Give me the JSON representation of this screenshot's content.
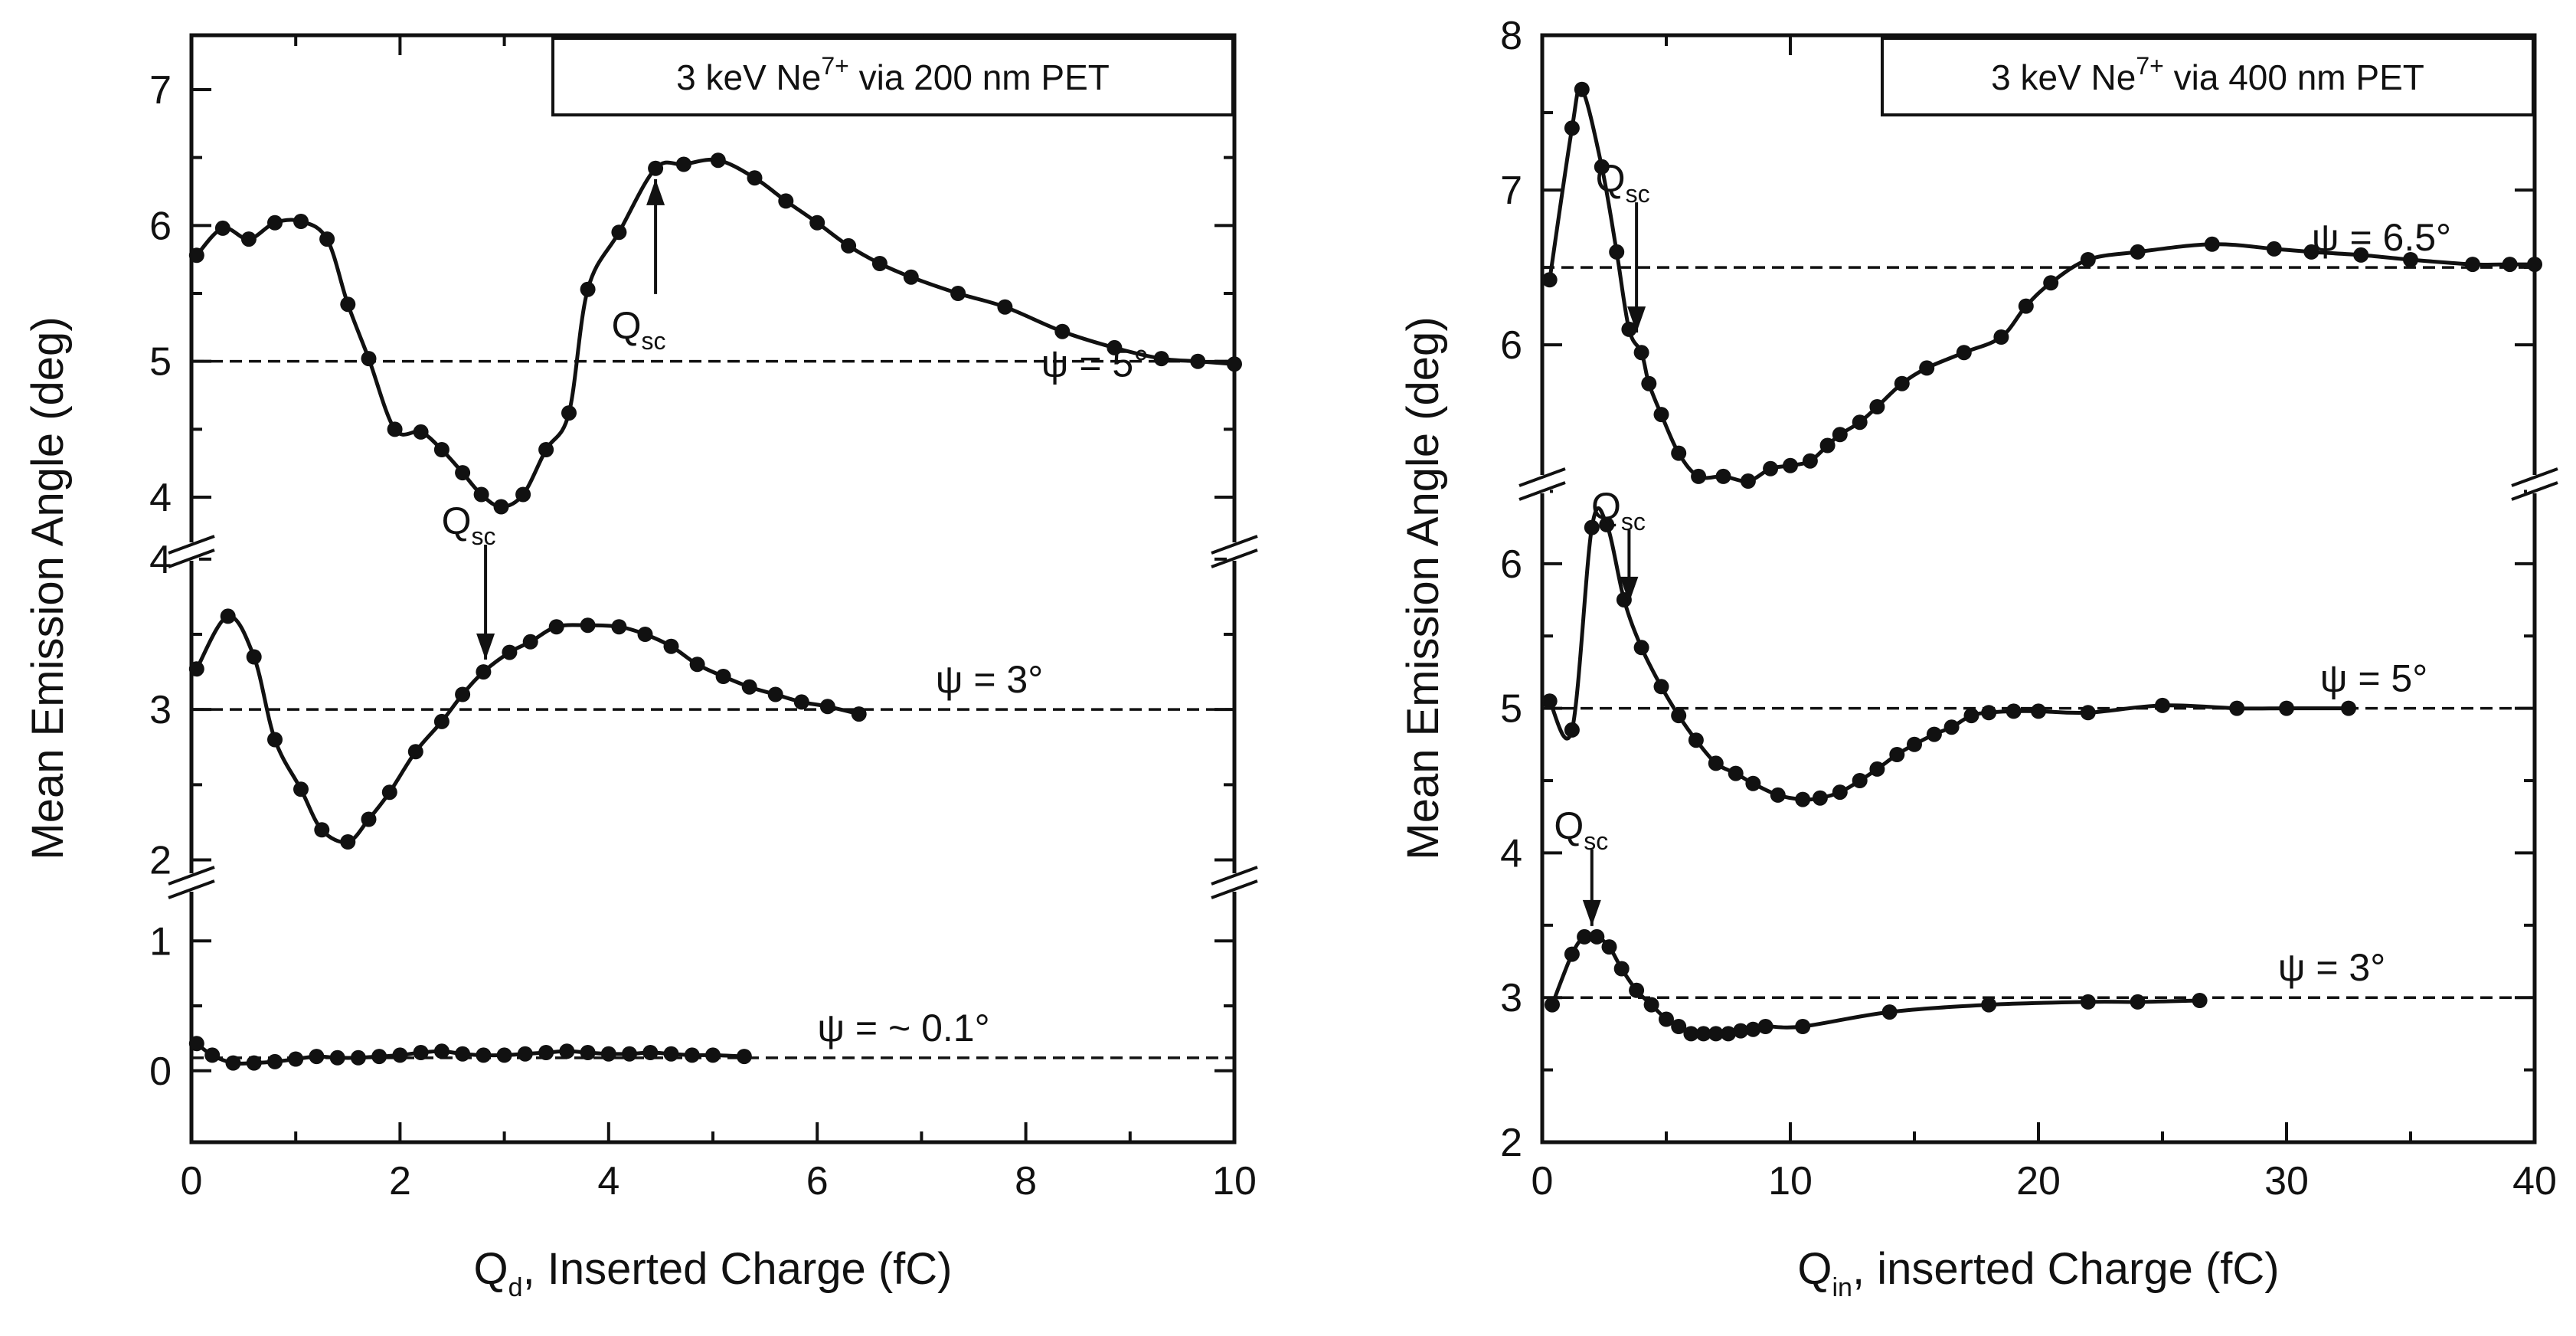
{
  "chart_data": [
    {
      "type": "line",
      "legend": "3 keV Ne",
      "legend_sup": "7+",
      "legend_rest": " via 200 nm PET",
      "xlabel_main": "Q",
      "xlabel_sub": "d",
      "xlabel_rest": ", Inserted Charge (fC)",
      "ylabel": "Mean Emission Angle (deg)",
      "xlim": [
        0,
        10
      ],
      "x_ticks": [
        "0",
        "2",
        "4",
        "6",
        "8",
        "10"
      ],
      "grid": false,
      "broken_y_axis": true,
      "panels": [
        {
          "ylim": [
            3.6,
            7.4
          ],
          "y_ticks": [
            4,
            5,
            6,
            7
          ],
          "y_tick_labels": [
            "4",
            "5",
            "6",
            "7"
          ],
          "series": [
            {
              "label": "ψ = 5°",
              "reference_y": 5.0,
              "points": [
                [
                  0.05,
                  5.78
                ],
                [
                  0.3,
                  5.98
                ],
                [
                  0.55,
                  5.9
                ],
                [
                  0.8,
                  6.02
                ],
                [
                  1.05,
                  6.03
                ],
                [
                  1.3,
                  5.9
                ],
                [
                  1.5,
                  5.42
                ],
                [
                  1.7,
                  5.02
                ],
                [
                  1.95,
                  4.5
                ],
                [
                  2.2,
                  4.48
                ],
                [
                  2.4,
                  4.35
                ],
                [
                  2.6,
                  4.18
                ],
                [
                  2.78,
                  4.02
                ],
                [
                  2.97,
                  3.93
                ],
                [
                  3.18,
                  4.02
                ],
                [
                  3.4,
                  4.35
                ],
                [
                  3.62,
                  4.62
                ],
                [
                  3.8,
                  5.53
                ],
                [
                  4.1,
                  5.95
                ],
                [
                  4.45,
                  6.42
                ],
                [
                  4.72,
                  6.45
                ],
                [
                  5.05,
                  6.48
                ],
                [
                  5.4,
                  6.35
                ],
                [
                  5.7,
                  6.18
                ],
                [
                  6.0,
                  6.02
                ],
                [
                  6.3,
                  5.85
                ],
                [
                  6.6,
                  5.72
                ],
                [
                  6.9,
                  5.62
                ],
                [
                  7.35,
                  5.5
                ],
                [
                  7.8,
                  5.4
                ],
                [
                  8.35,
                  5.22
                ],
                [
                  8.85,
                  5.1
                ],
                [
                  9.3,
                  5.02
                ],
                [
                  9.65,
                  5.0
                ],
                [
                  10.0,
                  4.98
                ]
              ],
              "qsc_x": 4.45,
              "qsc_label": "Q",
              "qsc_sub": "sc"
            }
          ]
        },
        {
          "ylim": [
            1.85,
            4.05
          ],
          "y_ticks": [
            2,
            3,
            4
          ],
          "y_tick_labels": [
            "2",
            "3",
            "4"
          ],
          "series": [
            {
              "label": "ψ = 3°",
              "reference_y": 3.0,
              "points": [
                [
                  0.05,
                  3.27
                ],
                [
                  0.35,
                  3.62
                ],
                [
                  0.6,
                  3.35
                ],
                [
                  0.8,
                  2.8
                ],
                [
                  1.05,
                  2.47
                ],
                [
                  1.25,
                  2.2
                ],
                [
                  1.5,
                  2.12
                ],
                [
                  1.7,
                  2.27
                ],
                [
                  1.9,
                  2.45
                ],
                [
                  2.15,
                  2.72
                ],
                [
                  2.4,
                  2.92
                ],
                [
                  2.6,
                  3.1
                ],
                [
                  2.8,
                  3.25
                ],
                [
                  3.05,
                  3.38
                ],
                [
                  3.25,
                  3.45
                ],
                [
                  3.5,
                  3.55
                ],
                [
                  3.8,
                  3.56
                ],
                [
                  4.1,
                  3.55
                ],
                [
                  4.35,
                  3.5
                ],
                [
                  4.6,
                  3.42
                ],
                [
                  4.85,
                  3.3
                ],
                [
                  5.1,
                  3.22
                ],
                [
                  5.35,
                  3.15
                ],
                [
                  5.6,
                  3.1
                ],
                [
                  5.85,
                  3.05
                ],
                [
                  6.1,
                  3.02
                ],
                [
                  6.4,
                  2.97
                ]
              ],
              "qsc_x": 2.82,
              "qsc_label": "Q",
              "qsc_sub": "sc"
            }
          ]
        },
        {
          "ylim": [
            -0.55,
            1.45
          ],
          "y_ticks": [
            0,
            1
          ],
          "y_tick_labels": [
            "0",
            "1"
          ],
          "series": [
            {
              "label": "ψ = ~ 0.1°",
              "reference_y": 0.1,
              "points": [
                [
                  0.05,
                  0.21
                ],
                [
                  0.2,
                  0.12
                ],
                [
                  0.4,
                  0.06
                ],
                [
                  0.6,
                  0.06
                ],
                [
                  0.8,
                  0.07
                ],
                [
                  1.0,
                  0.09
                ],
                [
                  1.2,
                  0.11
                ],
                [
                  1.4,
                  0.1
                ],
                [
                  1.6,
                  0.1
                ],
                [
                  1.8,
                  0.11
                ],
                [
                  2.0,
                  0.12
                ],
                [
                  2.2,
                  0.14
                ],
                [
                  2.4,
                  0.15
                ],
                [
                  2.6,
                  0.13
                ],
                [
                  2.8,
                  0.12
                ],
                [
                  3.0,
                  0.12
                ],
                [
                  3.2,
                  0.13
                ],
                [
                  3.4,
                  0.14
                ],
                [
                  3.6,
                  0.15
                ],
                [
                  3.8,
                  0.14
                ],
                [
                  4.0,
                  0.13
                ],
                [
                  4.2,
                  0.13
                ],
                [
                  4.4,
                  0.14
                ],
                [
                  4.6,
                  0.13
                ],
                [
                  4.8,
                  0.12
                ],
                [
                  5.0,
                  0.12
                ],
                [
                  5.3,
                  0.11
                ]
              ],
              "qsc_x": null
            }
          ]
        }
      ]
    },
    {
      "type": "line",
      "legend": "3 keV Ne",
      "legend_sup": "7+",
      "legend_rest": " via 400 nm PET",
      "xlabel_main": "Q",
      "xlabel_sub": "in",
      "xlabel_rest": ", inserted Charge (fC)",
      "ylabel": "Mean Emission Angle (deg)",
      "xlim": [
        0,
        40
      ],
      "x_ticks": [
        "0",
        "10",
        "20",
        "30",
        "40"
      ],
      "grid": false,
      "broken_y_axis": true,
      "panels": [
        {
          "ylim": [
            5.1,
            8.0
          ],
          "y_ticks": [
            6,
            7,
            8
          ],
          "y_tick_labels": [
            "6",
            "7",
            "8"
          ],
          "series": [
            {
              "label": "ψ = 6.5°",
              "reference_y": 6.5,
              "points": [
                [
                  0.3,
                  6.42
                ],
                [
                  1.2,
                  7.4
                ],
                [
                  1.6,
                  7.65
                ],
                [
                  2.4,
                  7.15
                ],
                [
                  3.0,
                  6.6
                ],
                [
                  3.5,
                  6.1
                ],
                [
                  4.0,
                  5.95
                ],
                [
                  4.3,
                  5.75
                ],
                [
                  4.8,
                  5.55
                ],
                [
                  5.5,
                  5.3
                ],
                [
                  6.3,
                  5.15
                ],
                [
                  7.3,
                  5.15
                ],
                [
                  8.3,
                  5.12
                ],
                [
                  9.2,
                  5.2
                ],
                [
                  10.0,
                  5.22
                ],
                [
                  10.8,
                  5.25
                ],
                [
                  11.5,
                  5.35
                ],
                [
                  12.0,
                  5.42
                ],
                [
                  12.8,
                  5.5
                ],
                [
                  13.5,
                  5.6
                ],
                [
                  14.5,
                  5.75
                ],
                [
                  15.5,
                  5.85
                ],
                [
                  17.0,
                  5.95
                ],
                [
                  18.5,
                  6.05
                ],
                [
                  19.5,
                  6.25
                ],
                [
                  20.5,
                  6.4
                ],
                [
                  22.0,
                  6.55
                ],
                [
                  24.0,
                  6.6
                ],
                [
                  27.0,
                  6.65
                ],
                [
                  29.5,
                  6.62
                ],
                [
                  31.0,
                  6.6
                ],
                [
                  33.0,
                  6.58
                ],
                [
                  35.0,
                  6.55
                ],
                [
                  37.5,
                  6.52
                ],
                [
                  39.0,
                  6.52
                ],
                [
                  40.0,
                  6.52
                ]
              ],
              "qsc_x": 3.8,
              "qsc_label": "Q",
              "qsc_sub": "sc"
            }
          ]
        },
        {
          "ylim": [
            2.0,
            6.55
          ],
          "y_ticks": [
            2,
            3,
            4,
            5,
            6
          ],
          "y_tick_labels": [
            "2",
            "3",
            "4",
            "5",
            "6"
          ],
          "series": [
            {
              "label": "ψ = 5°",
              "reference_y": 5.0,
              "points": [
                [
                  0.3,
                  5.05
                ],
                [
                  1.2,
                  4.85
                ],
                [
                  2.0,
                  6.25
                ],
                [
                  2.6,
                  6.27
                ],
                [
                  3.3,
                  5.75
                ],
                [
                  4.0,
                  5.42
                ],
                [
                  4.8,
                  5.15
                ],
                [
                  5.5,
                  4.95
                ],
                [
                  6.2,
                  4.78
                ],
                [
                  7.0,
                  4.62
                ],
                [
                  7.8,
                  4.55
                ],
                [
                  8.5,
                  4.48
                ],
                [
                  9.5,
                  4.4
                ],
                [
                  10.5,
                  4.37
                ],
                [
                  11.2,
                  4.38
                ],
                [
                  12.0,
                  4.42
                ],
                [
                  12.8,
                  4.5
                ],
                [
                  13.5,
                  4.58
                ],
                [
                  14.3,
                  4.68
                ],
                [
                  15.0,
                  4.75
                ],
                [
                  15.8,
                  4.82
                ],
                [
                  16.5,
                  4.87
                ],
                [
                  17.3,
                  4.95
                ],
                [
                  18.0,
                  4.97
                ],
                [
                  19.0,
                  4.98
                ],
                [
                  20.0,
                  4.98
                ],
                [
                  22.0,
                  4.97
                ],
                [
                  25.0,
                  5.02
                ],
                [
                  28.0,
                  5.0
                ],
                [
                  30.0,
                  5.0
                ],
                [
                  32.5,
                  5.0
                ]
              ],
              "qsc_x": 3.5,
              "qsc_label": "Q",
              "qsc_sub": "sc"
            },
            {
              "label": "ψ = 3°",
              "reference_y": 3.0,
              "points": [
                [
                  0.4,
                  2.95
                ],
                [
                  1.2,
                  3.3
                ],
                [
                  1.7,
                  3.42
                ],
                [
                  2.2,
                  3.42
                ],
                [
                  2.7,
                  3.35
                ],
                [
                  3.2,
                  3.2
                ],
                [
                  3.8,
                  3.05
                ],
                [
                  4.4,
                  2.95
                ],
                [
                  5.0,
                  2.85
                ],
                [
                  5.5,
                  2.8
                ],
                [
                  6.0,
                  2.75
                ],
                [
                  6.5,
                  2.75
                ],
                [
                  7.0,
                  2.75
                ],
                [
                  7.5,
                  2.75
                ],
                [
                  8.0,
                  2.77
                ],
                [
                  8.5,
                  2.78
                ],
                [
                  9.0,
                  2.8
                ],
                [
                  10.5,
                  2.8
                ],
                [
                  14.0,
                  2.9
                ],
                [
                  18.0,
                  2.95
                ],
                [
                  22.0,
                  2.97
                ],
                [
                  24.0,
                  2.97
                ],
                [
                  26.5,
                  2.98
                ]
              ],
              "qsc_x": 2.0,
              "qsc_label": "Q",
              "qsc_sub": "sc"
            }
          ]
        }
      ]
    }
  ]
}
